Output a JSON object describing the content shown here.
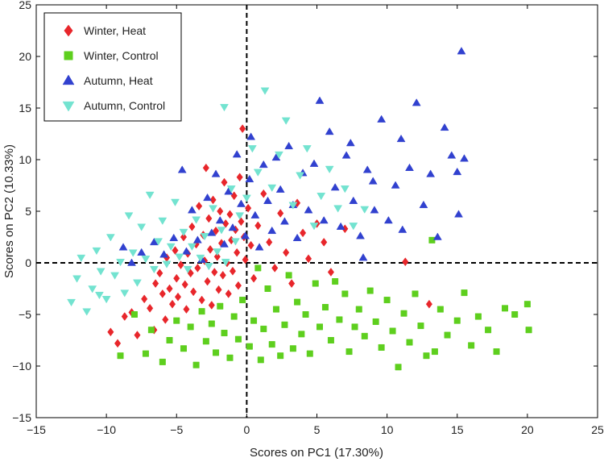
{
  "chart_data": {
    "type": "scatter",
    "title": "",
    "xlabel": "Scores on PC1 (17.30%)",
    "ylabel": "Scores on PC2 (10.33%)",
    "xlim": [
      -15,
      25
    ],
    "ylim": [
      -15,
      25
    ],
    "xticks": [
      "−15",
      "−10",
      "−5",
      "0",
      "5",
      "10",
      "15",
      "20",
      "25"
    ],
    "yticks": [
      "−15",
      "−10",
      "−5",
      "0",
      "5",
      "10",
      "15",
      "20",
      "25"
    ],
    "grid": false,
    "reference_lines": {
      "x": 0,
      "y": 0,
      "style": "dashed"
    },
    "legend_position": "top-left",
    "series": [
      {
        "name": "Winter, Heat",
        "marker": "diamond",
        "color": "#e8262b",
        "points": [
          [
            -9.7,
            -6.7
          ],
          [
            -9.2,
            -7.8
          ],
          [
            -8.7,
            -5.2
          ],
          [
            -8.2,
            -4.8
          ],
          [
            -7.8,
            -7.0
          ],
          [
            -7.3,
            -3.5
          ],
          [
            -6.9,
            -4.4
          ],
          [
            -6.6,
            -6.5
          ],
          [
            -6.5,
            -2.0
          ],
          [
            -6.2,
            -1.0
          ],
          [
            -6.0,
            -3.0
          ],
          [
            -5.8,
            -5.5
          ],
          [
            -5.7,
            0.5
          ],
          [
            -5.5,
            -2.5
          ],
          [
            -5.3,
            -4.0
          ],
          [
            -5.1,
            1.2
          ],
          [
            -5.0,
            -1.5
          ],
          [
            -4.9,
            -3.3
          ],
          [
            -4.7,
            -0.2
          ],
          [
            -4.5,
            2.5
          ],
          [
            -4.4,
            -2.1
          ],
          [
            -4.3,
            -4.5
          ],
          [
            -4.2,
            0.9
          ],
          [
            -4.0,
            -1.0
          ],
          [
            -3.9,
            3.5
          ],
          [
            -3.8,
            -2.8
          ],
          [
            -3.6,
            1.8
          ],
          [
            -3.5,
            -0.5
          ],
          [
            -3.4,
            5.5
          ],
          [
            -3.2,
            -3.6
          ],
          [
            -3.1,
            2.7
          ],
          [
            -3.0,
            0.2
          ],
          [
            -2.9,
            9.2
          ],
          [
            -2.8,
            -1.8
          ],
          [
            -2.7,
            4.3
          ],
          [
            -2.6,
            1.3
          ],
          [
            -2.5,
            -4.1
          ],
          [
            -2.4,
            6.1
          ],
          [
            -2.3,
            -0.9
          ],
          [
            -2.2,
            3.1
          ],
          [
            -2.1,
            0.6
          ],
          [
            -2.0,
            -2.6
          ],
          [
            -1.9,
            5.0
          ],
          [
            -1.8,
            1.9
          ],
          [
            -1.7,
            -1.2
          ],
          [
            -1.6,
            7.8
          ],
          [
            -1.5,
            3.8
          ],
          [
            -1.4,
            0.0
          ],
          [
            -1.3,
            -3.0
          ],
          [
            -1.2,
            4.7
          ],
          [
            -1.1,
            2.2
          ],
          [
            -1.0,
            -0.8
          ],
          [
            -0.9,
            6.5
          ],
          [
            -0.8,
            3.2
          ],
          [
            -0.7,
            1.0
          ],
          [
            -0.6,
            -2.2
          ],
          [
            -0.5,
            8.3
          ],
          [
            -0.4,
            4.0
          ],
          [
            -0.3,
            13.0
          ],
          [
            -0.2,
            2.5
          ],
          [
            -0.1,
            0.3
          ],
          [
            0.1,
            5.3
          ],
          [
            0.3,
            1.7
          ],
          [
            0.5,
            -1.5
          ],
          [
            0.8,
            3.6
          ],
          [
            1.2,
            6.7
          ],
          [
            1.6,
            2.0
          ],
          [
            2.0,
            -0.5
          ],
          [
            2.4,
            4.8
          ],
          [
            2.8,
            1.0
          ],
          [
            3.2,
            -2.0
          ],
          [
            3.6,
            5.8
          ],
          [
            4.0,
            2.9
          ],
          [
            4.4,
            0.4
          ],
          [
            5.0,
            3.8
          ],
          [
            5.5,
            2.0
          ],
          [
            6.0,
            -0.9
          ],
          [
            7.0,
            3.3
          ],
          [
            11.3,
            0.1
          ],
          [
            13.0,
            -4.0
          ]
        ]
      },
      {
        "name": "Winter, Control",
        "marker": "square",
        "color": "#5ecf1e",
        "points": [
          [
            -9.0,
            -9.0
          ],
          [
            -8.0,
            -5.0
          ],
          [
            -7.2,
            -8.8
          ],
          [
            -6.8,
            -6.5
          ],
          [
            -6.0,
            -9.6
          ],
          [
            -5.5,
            -7.5
          ],
          [
            -5.0,
            -5.6
          ],
          [
            -4.5,
            -8.3
          ],
          [
            -4.0,
            -6.2
          ],
          [
            -3.6,
            -9.9
          ],
          [
            -3.2,
            -4.7
          ],
          [
            -2.9,
            -7.6
          ],
          [
            -2.5,
            -5.9
          ],
          [
            -2.2,
            -8.7
          ],
          [
            -1.9,
            -4.2
          ],
          [
            -1.6,
            -6.8
          ],
          [
            -1.2,
            -9.2
          ],
          [
            -0.9,
            -5.2
          ],
          [
            -0.6,
            -7.4
          ],
          [
            -0.3,
            -3.6
          ],
          [
            0.2,
            -8.1
          ],
          [
            0.5,
            -5.6
          ],
          [
            0.8,
            -0.5
          ],
          [
            1.0,
            -9.4
          ],
          [
            1.2,
            -6.4
          ],
          [
            1.5,
            -2.5
          ],
          [
            1.8,
            -7.9
          ],
          [
            2.1,
            -4.5
          ],
          [
            2.4,
            -9.0
          ],
          [
            2.7,
            -6.0
          ],
          [
            3.0,
            -1.2
          ],
          [
            3.3,
            -8.3
          ],
          [
            3.6,
            -3.8
          ],
          [
            3.9,
            -6.9
          ],
          [
            4.2,
            -5.0
          ],
          [
            4.5,
            -8.8
          ],
          [
            4.9,
            -2.0
          ],
          [
            5.2,
            -6.2
          ],
          [
            5.6,
            -4.3
          ],
          [
            6.0,
            -7.5
          ],
          [
            6.3,
            -1.8
          ],
          [
            6.6,
            -5.5
          ],
          [
            7.0,
            -3.0
          ],
          [
            7.3,
            -8.6
          ],
          [
            7.7,
            -6.2
          ],
          [
            8.0,
            -4.5
          ],
          [
            8.4,
            -7.1
          ],
          [
            8.8,
            -2.7
          ],
          [
            9.2,
            -5.7
          ],
          [
            9.6,
            -8.2
          ],
          [
            10.0,
            -3.6
          ],
          [
            10.4,
            -6.6
          ],
          [
            10.8,
            -10.1
          ],
          [
            11.2,
            -4.9
          ],
          [
            11.6,
            -7.7
          ],
          [
            12.0,
            -3.0
          ],
          [
            12.4,
            -6.1
          ],
          [
            12.8,
            -9.0
          ],
          [
            13.2,
            2.2
          ],
          [
            13.4,
            -8.6
          ],
          [
            13.8,
            -4.5
          ],
          [
            14.3,
            -7.0
          ],
          [
            15.0,
            -5.6
          ],
          [
            15.5,
            -2.9
          ],
          [
            16.0,
            -8.0
          ],
          [
            16.5,
            -5.2
          ],
          [
            17.2,
            -6.5
          ],
          [
            17.8,
            -8.6
          ],
          [
            18.4,
            -4.4
          ],
          [
            19.1,
            -5.0
          ],
          [
            20.0,
            -4.0
          ],
          [
            20.1,
            -6.5
          ]
        ]
      },
      {
        "name": "Autumn, Heat",
        "marker": "triangle-up",
        "color": "#3141cf",
        "points": [
          [
            -8.8,
            1.5
          ],
          [
            -8.2,
            0.0
          ],
          [
            -7.5,
            1.0
          ],
          [
            -6.6,
            2.0
          ],
          [
            -5.9,
            0.8
          ],
          [
            -5.2,
            2.4
          ],
          [
            -4.6,
            9.0
          ],
          [
            -4.3,
            1.1
          ],
          [
            -3.9,
            5.1
          ],
          [
            -3.5,
            2.2
          ],
          [
            -3.2,
            0.3
          ],
          [
            -2.8,
            6.3
          ],
          [
            -2.5,
            2.9
          ],
          [
            -2.2,
            8.6
          ],
          [
            -1.9,
            4.1
          ],
          [
            -1.6,
            1.8
          ],
          [
            -1.3,
            6.9
          ],
          [
            -1.0,
            3.4
          ],
          [
            -0.7,
            10.5
          ],
          [
            -0.4,
            5.7
          ],
          [
            -0.1,
            2.6
          ],
          [
            0.2,
            8.1
          ],
          [
            0.3,
            12.2
          ],
          [
            0.6,
            4.6
          ],
          [
            0.9,
            1.5
          ],
          [
            1.2,
            9.5
          ],
          [
            1.5,
            6.0
          ],
          [
            1.8,
            3.1
          ],
          [
            2.1,
            10.2
          ],
          [
            2.4,
            7.1
          ],
          [
            2.7,
            4.0
          ],
          [
            3.0,
            11.3
          ],
          [
            3.3,
            5.6
          ],
          [
            3.6,
            2.4
          ],
          [
            4.0,
            8.7
          ],
          [
            4.4,
            5.1
          ],
          [
            4.8,
            9.6
          ],
          [
            5.2,
            15.7
          ],
          [
            5.5,
            4.1
          ],
          [
            5.9,
            12.7
          ],
          [
            6.3,
            7.3
          ],
          [
            6.7,
            3.5
          ],
          [
            7.1,
            10.4
          ],
          [
            7.6,
            6.0
          ],
          [
            8.1,
            2.6
          ],
          [
            8.6,
            9.0
          ],
          [
            9.1,
            5.1
          ],
          [
            9.6,
            13.9
          ],
          [
            10.1,
            4.1
          ],
          [
            10.6,
            7.5
          ],
          [
            11.1,
            3.2
          ],
          [
            11.6,
            9.2
          ],
          [
            12.1,
            15.5
          ],
          [
            12.6,
            5.6
          ],
          [
            13.1,
            8.6
          ],
          [
            13.6,
            2.5
          ],
          [
            14.1,
            13.1
          ],
          [
            14.6,
            10.4
          ],
          [
            15.1,
            4.7
          ],
          [
            15.3,
            20.5
          ],
          [
            15.5,
            10.1
          ],
          [
            15.0,
            8.8
          ],
          [
            11.0,
            12.0
          ],
          [
            9.0,
            7.9
          ],
          [
            8.3,
            0.5
          ],
          [
            7.4,
            11.6
          ]
        ]
      },
      {
        "name": "Autumn, Control",
        "marker": "triangle-down",
        "color": "#73e3d0",
        "points": [
          [
            -12.5,
            -3.8
          ],
          [
            -12.1,
            -1.5
          ],
          [
            -11.8,
            0.5
          ],
          [
            -11.4,
            -4.7
          ],
          [
            -11.0,
            -2.5
          ],
          [
            -10.7,
            1.2
          ],
          [
            -10.4,
            -0.8
          ],
          [
            -10.0,
            -3.5
          ],
          [
            -9.7,
            2.5
          ],
          [
            -9.4,
            -1.2
          ],
          [
            -9.0,
            0.1
          ],
          [
            -8.7,
            -2.9
          ],
          [
            -8.4,
            4.6
          ],
          [
            -8.1,
            1.0
          ],
          [
            -7.8,
            -1.9
          ],
          [
            -7.5,
            3.5
          ],
          [
            -7.2,
            0.4
          ],
          [
            -6.9,
            6.6
          ],
          [
            -6.6,
            -0.6
          ],
          [
            -6.3,
            2.1
          ],
          [
            -6.0,
            4.1
          ],
          [
            -5.7,
            -0.1
          ],
          [
            -5.4,
            1.6
          ],
          [
            -5.1,
            5.9
          ],
          [
            -4.8,
            0.6
          ],
          [
            -4.5,
            3.0
          ],
          [
            -4.2,
            -0.6
          ],
          [
            -3.9,
            1.6
          ],
          [
            -3.6,
            4.2
          ],
          [
            -3.3,
            0.5
          ],
          [
            -3.0,
            2.6
          ],
          [
            -2.7,
            -0.3
          ],
          [
            -2.4,
            5.3
          ],
          [
            -2.1,
            1.1
          ],
          [
            -1.8,
            3.2
          ],
          [
            -1.5,
            0.1
          ],
          [
            -1.1,
            7.2
          ],
          [
            -0.8,
            2.1
          ],
          [
            -0.5,
            4.6
          ],
          [
            0.0,
            6.3
          ],
          [
            0.4,
            11.1
          ],
          [
            0.8,
            8.8
          ],
          [
            1.3,
            16.7
          ],
          [
            1.8,
            7.3
          ],
          [
            2.3,
            10.5
          ],
          [
            2.8,
            13.8
          ],
          [
            3.3,
            5.6
          ],
          [
            3.8,
            8.5
          ],
          [
            4.3,
            11.1
          ],
          [
            4.8,
            3.6
          ],
          [
            5.3,
            6.5
          ],
          [
            5.9,
            9.1
          ],
          [
            6.5,
            5.3
          ],
          [
            7.0,
            7.2
          ],
          [
            7.6,
            3.6
          ],
          [
            8.4,
            5.2
          ],
          [
            -1.6,
            15.1
          ],
          [
            -10.5,
            -3.1
          ]
        ]
      }
    ]
  }
}
